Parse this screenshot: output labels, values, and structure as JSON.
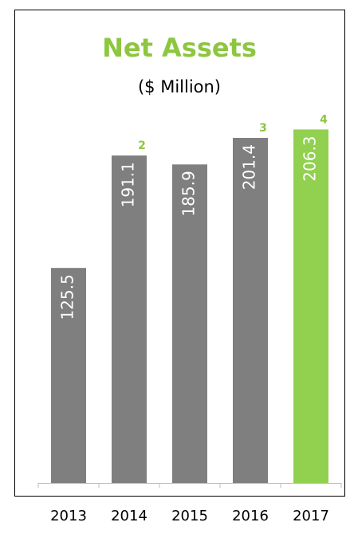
{
  "chart_data": {
    "type": "bar",
    "title": "Net Assets",
    "subtitle": "($ Million)",
    "categories": [
      "2013",
      "2014",
      "2015",
      "2016",
      "2017"
    ],
    "values": [
      125.5,
      191.1,
      185.9,
      201.4,
      206.3
    ],
    "colors": [
      "#7f7f7f",
      "#7f7f7f",
      "#7f7f7f",
      "#7f7f7f",
      "#92d050"
    ],
    "value_notes": [
      null,
      "2",
      null,
      "3",
      "4"
    ],
    "title_color": "#8dc63f",
    "ylim": [
      0,
      220
    ]
  }
}
